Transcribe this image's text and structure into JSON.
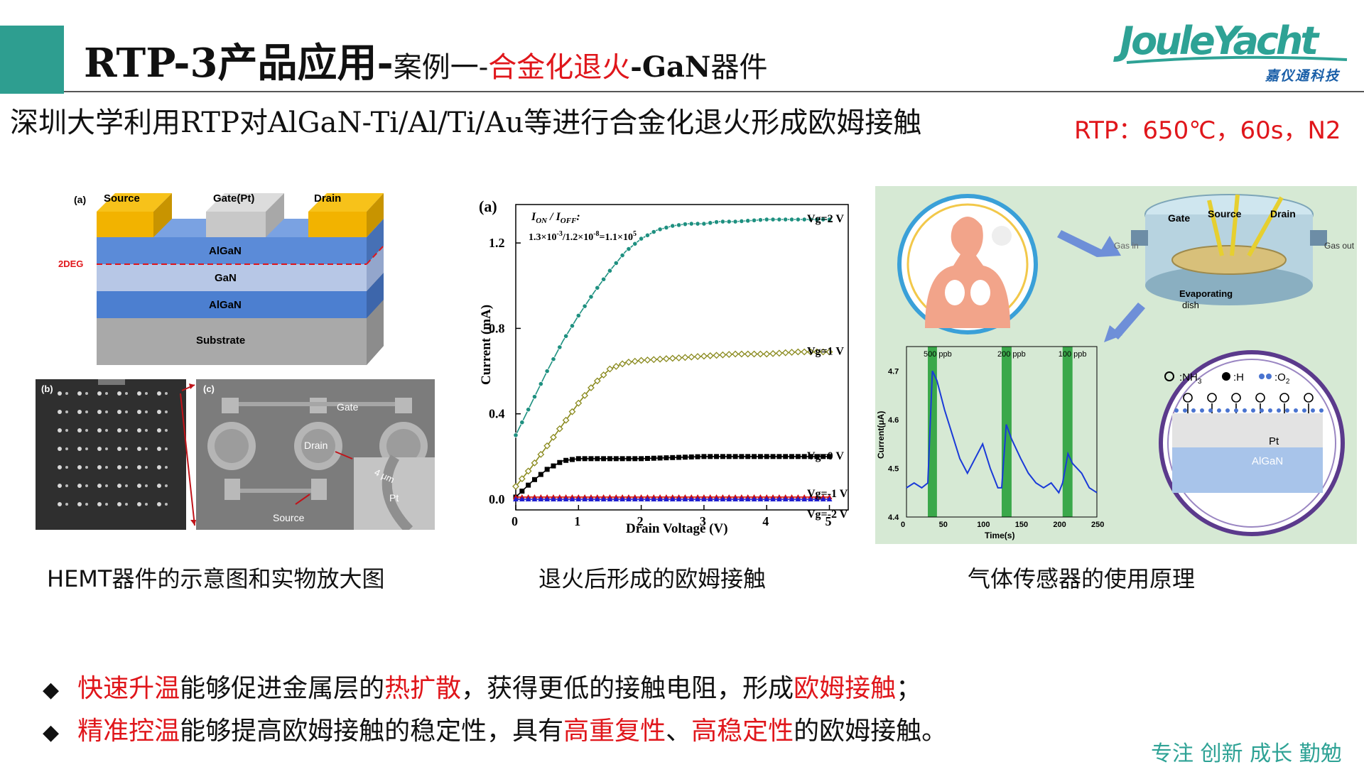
{
  "header": {
    "title_main": "RTP-3产品应用-",
    "title_case": "案例一-",
    "title_red": "合金化退火",
    "title_gan": "-GaN",
    "title_device": "器件",
    "logo_word": "JouleYacht",
    "logo_sub": "嘉仪通科技"
  },
  "subtitle": "深圳大学利用RTP对AlGaN-Ti/Al/Ti/Au等进行合金化退火形成欧姆接触",
  "rtp_params": "RTP：650℃，60s，N2",
  "figures": {
    "hemt": {
      "panel_a": "(a)",
      "source": "Source",
      "gate": "Gate(Pt)",
      "drain": "Drain",
      "algan_top": "AlGaN",
      "twodeg": "2DEG",
      "gan": "GaN",
      "algan_bottom": "AlGaN",
      "substrate": "Substrate",
      "panel_b": "(b)",
      "panel_c": "(c)",
      "c_gate": "Gate",
      "c_drain": "Drain",
      "c_source": "Source",
      "c_scale": "4 μm",
      "c_pt": "Pt",
      "caption": "HEMT器件的示意图和实物放大图"
    },
    "iv_chart": {
      "panel": "(a)",
      "ratio_label": "I",
      "ratio_value": "1.3×10",
      "caption": "退火后形成的欧姆接触"
    },
    "sensor": {
      "gate": "Gate",
      "source": "Source",
      "drain": "Drain",
      "gas_in": "Gas in",
      "gas_out": "Gas out",
      "evaporating": "Evaporating",
      "dish": "dish",
      "legend_nh3": ":NH",
      "legend_h": ":H",
      "legend_o2": ":O",
      "pt": "Pt",
      "algan": "AlGaN",
      "caption": "气体传感器的使用原理"
    }
  },
  "chart_data": [
    {
      "type": "line",
      "title": "",
      "xlabel": "Drain Voltage (V)",
      "ylabel": "Current (mA)",
      "xlim": [
        0,
        5.3
      ],
      "ylim": [
        -0.05,
        1.38
      ],
      "xticks": [
        0,
        1,
        2,
        3,
        4,
        5
      ],
      "yticks": [
        0.0,
        0.4,
        0.8,
        1.2
      ],
      "annotation": "I_ON / I_OFF: 1.3×10^-3/1.2×10^-8=1.1×10^5",
      "series": [
        {
          "name": "Vg=2 V",
          "color": "#1e9080",
          "x": [
            0,
            0.25,
            0.5,
            0.75,
            1.0,
            1.25,
            1.5,
            1.75,
            2.0,
            2.25,
            2.5,
            2.75,
            3.0,
            3.25,
            3.5,
            4.0,
            4.5,
            5.0
          ],
          "y": [
            0.3,
            0.45,
            0.6,
            0.74,
            0.86,
            0.97,
            1.07,
            1.16,
            1.22,
            1.26,
            1.28,
            1.29,
            1.29,
            1.3,
            1.3,
            1.31,
            1.31,
            1.31
          ]
        },
        {
          "name": "Vg=1 V",
          "color": "#8a8a1e",
          "x": [
            0,
            0.25,
            0.5,
            0.75,
            1.0,
            1.25,
            1.5,
            1.75,
            2.0,
            2.5,
            3.0,
            3.5,
            4.0,
            4.5,
            5.0
          ],
          "y": [
            0.06,
            0.15,
            0.25,
            0.35,
            0.45,
            0.54,
            0.61,
            0.64,
            0.65,
            0.66,
            0.67,
            0.68,
            0.68,
            0.69,
            0.69
          ]
        },
        {
          "name": "Vg=0 V",
          "color": "#000000",
          "x": [
            0,
            0.25,
            0.5,
            0.75,
            1.0,
            1.5,
            2.0,
            3.0,
            4.0,
            5.0
          ],
          "y": [
            0.01,
            0.08,
            0.14,
            0.18,
            0.19,
            0.19,
            0.19,
            0.2,
            0.2,
            0.2
          ]
        },
        {
          "name": "Vg=-1 V",
          "color": "#d01010",
          "x": [
            0,
            1,
            2,
            3,
            4,
            5
          ],
          "y": [
            0.01,
            0.01,
            0.01,
            0.01,
            0.01,
            0.01
          ]
        },
        {
          "name": "Vg=-2 V",
          "color": "#2020d0",
          "x": [
            0,
            1,
            2,
            3,
            4,
            5
          ],
          "y": [
            0.0,
            0.0,
            0.0,
            0.0,
            0.0,
            0.0
          ]
        }
      ]
    },
    {
      "type": "line",
      "title": "",
      "xlabel": "Time(s)",
      "ylabel": "Current(μA)",
      "xlim": [
        0,
        250
      ],
      "ylim": [
        4.4,
        4.75
      ],
      "xticks": [
        0,
        50,
        100,
        150,
        200,
        250
      ],
      "yticks": [
        4.4,
        4.5,
        4.6,
        4.7
      ],
      "exposure_bands": [
        {
          "label": "500 ppb",
          "from": 28,
          "to": 40
        },
        {
          "label": "200 ppb",
          "from": 125,
          "to": 138
        },
        {
          "label": "100 ppb",
          "from": 205,
          "to": 218
        }
      ],
      "series": [
        {
          "name": "",
          "color": "#1a3ad8",
          "x": [
            0,
            10,
            20,
            28,
            34,
            40,
            50,
            60,
            70,
            80,
            90,
            100,
            110,
            120,
            125,
            131,
            138,
            150,
            160,
            170,
            180,
            190,
            200,
            205,
            212,
            218,
            230,
            240,
            250
          ],
          "y": [
            4.46,
            4.47,
            4.46,
            4.47,
            4.7,
            4.68,
            4.62,
            4.57,
            4.52,
            4.49,
            4.52,
            4.55,
            4.5,
            4.46,
            4.46,
            4.59,
            4.56,
            4.52,
            4.49,
            4.47,
            4.46,
            4.47,
            4.45,
            4.47,
            4.53,
            4.51,
            4.49,
            4.46,
            4.45
          ]
        }
      ]
    }
  ],
  "bullets": [
    {
      "lead": "快速升温",
      "t1": "能够促进金属层的",
      "hl2": "热扩散",
      "t2": "，获得更低的接触电阻，形成",
      "hl3": "欧姆接触",
      "t3": "；"
    },
    {
      "lead": "精准控温",
      "t1": "能够提高欧姆接触的稳定性，具有",
      "hl2": "高重复性",
      "t2": "、",
      "hl3": "高稳定性",
      "t3": "的欧姆接触。"
    }
  ],
  "slogan": "专注 创新 成长 勤勉",
  "colors": {
    "accent": "#2e9e90",
    "red": "#e0161b"
  }
}
